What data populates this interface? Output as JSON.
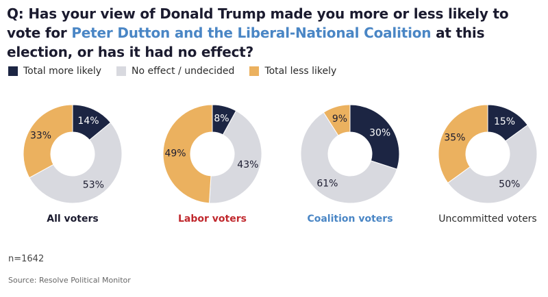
{
  "title": {
    "part1": "Q: Has your view of Donald Trump made you more or less likely to vote for ",
    "highlight": "Peter Dutton and the Liberal-National Coalition",
    "part2": " at this election, or has it had no effect?"
  },
  "legend": [
    {
      "label": "Total more likely",
      "color": "#1c2543"
    },
    {
      "label": "No effect / undecided",
      "color": "#d8d9df"
    },
    {
      "label": "Total less likely",
      "color": "#ebb15f"
    }
  ],
  "chart_data": [
    {
      "type": "pie",
      "title": "All voters",
      "title_color": "#1b1b2f",
      "title_bold": true,
      "categories": [
        "Total more likely",
        "No effect / undecided",
        "Total less likely"
      ],
      "values": [
        14,
        53,
        33
      ],
      "labels": [
        "14%",
        "53%",
        "33%"
      ],
      "colors": [
        "#1c2543",
        "#d8d9df",
        "#ebb15f"
      ]
    },
    {
      "type": "pie",
      "title": "Labor voters",
      "title_color": "#c0282d",
      "title_bold": true,
      "categories": [
        "Total more likely",
        "No effect / undecided",
        "Total less likely"
      ],
      "values": [
        8,
        43,
        49
      ],
      "labels": [
        "8%",
        "43%",
        "49%"
      ],
      "colors": [
        "#1c2543",
        "#d8d9df",
        "#ebb15f"
      ]
    },
    {
      "type": "pie",
      "title": "Coalition voters",
      "title_color": "#4a86c5",
      "title_bold": true,
      "categories": [
        "Total more likely",
        "No effect / undecided",
        "Total less likely"
      ],
      "values": [
        30,
        61,
        9
      ],
      "labels": [
        "30%",
        "61%",
        "9%"
      ],
      "colors": [
        "#1c2543",
        "#d8d9df",
        "#ebb15f"
      ]
    },
    {
      "type": "pie",
      "title": "Uncommitted voters",
      "title_color": "#2a2a2a",
      "title_bold": false,
      "categories": [
        "Total more likely",
        "No effect / undecided",
        "Total less likely"
      ],
      "values": [
        15,
        50,
        35
      ],
      "labels": [
        "15%",
        "50%",
        "35%"
      ],
      "colors": [
        "#1c2543",
        "#d8d9df",
        "#ebb15f"
      ]
    }
  ],
  "footer": {
    "sample": "n=1642",
    "source": "Source: Resolve Political Monitor"
  }
}
